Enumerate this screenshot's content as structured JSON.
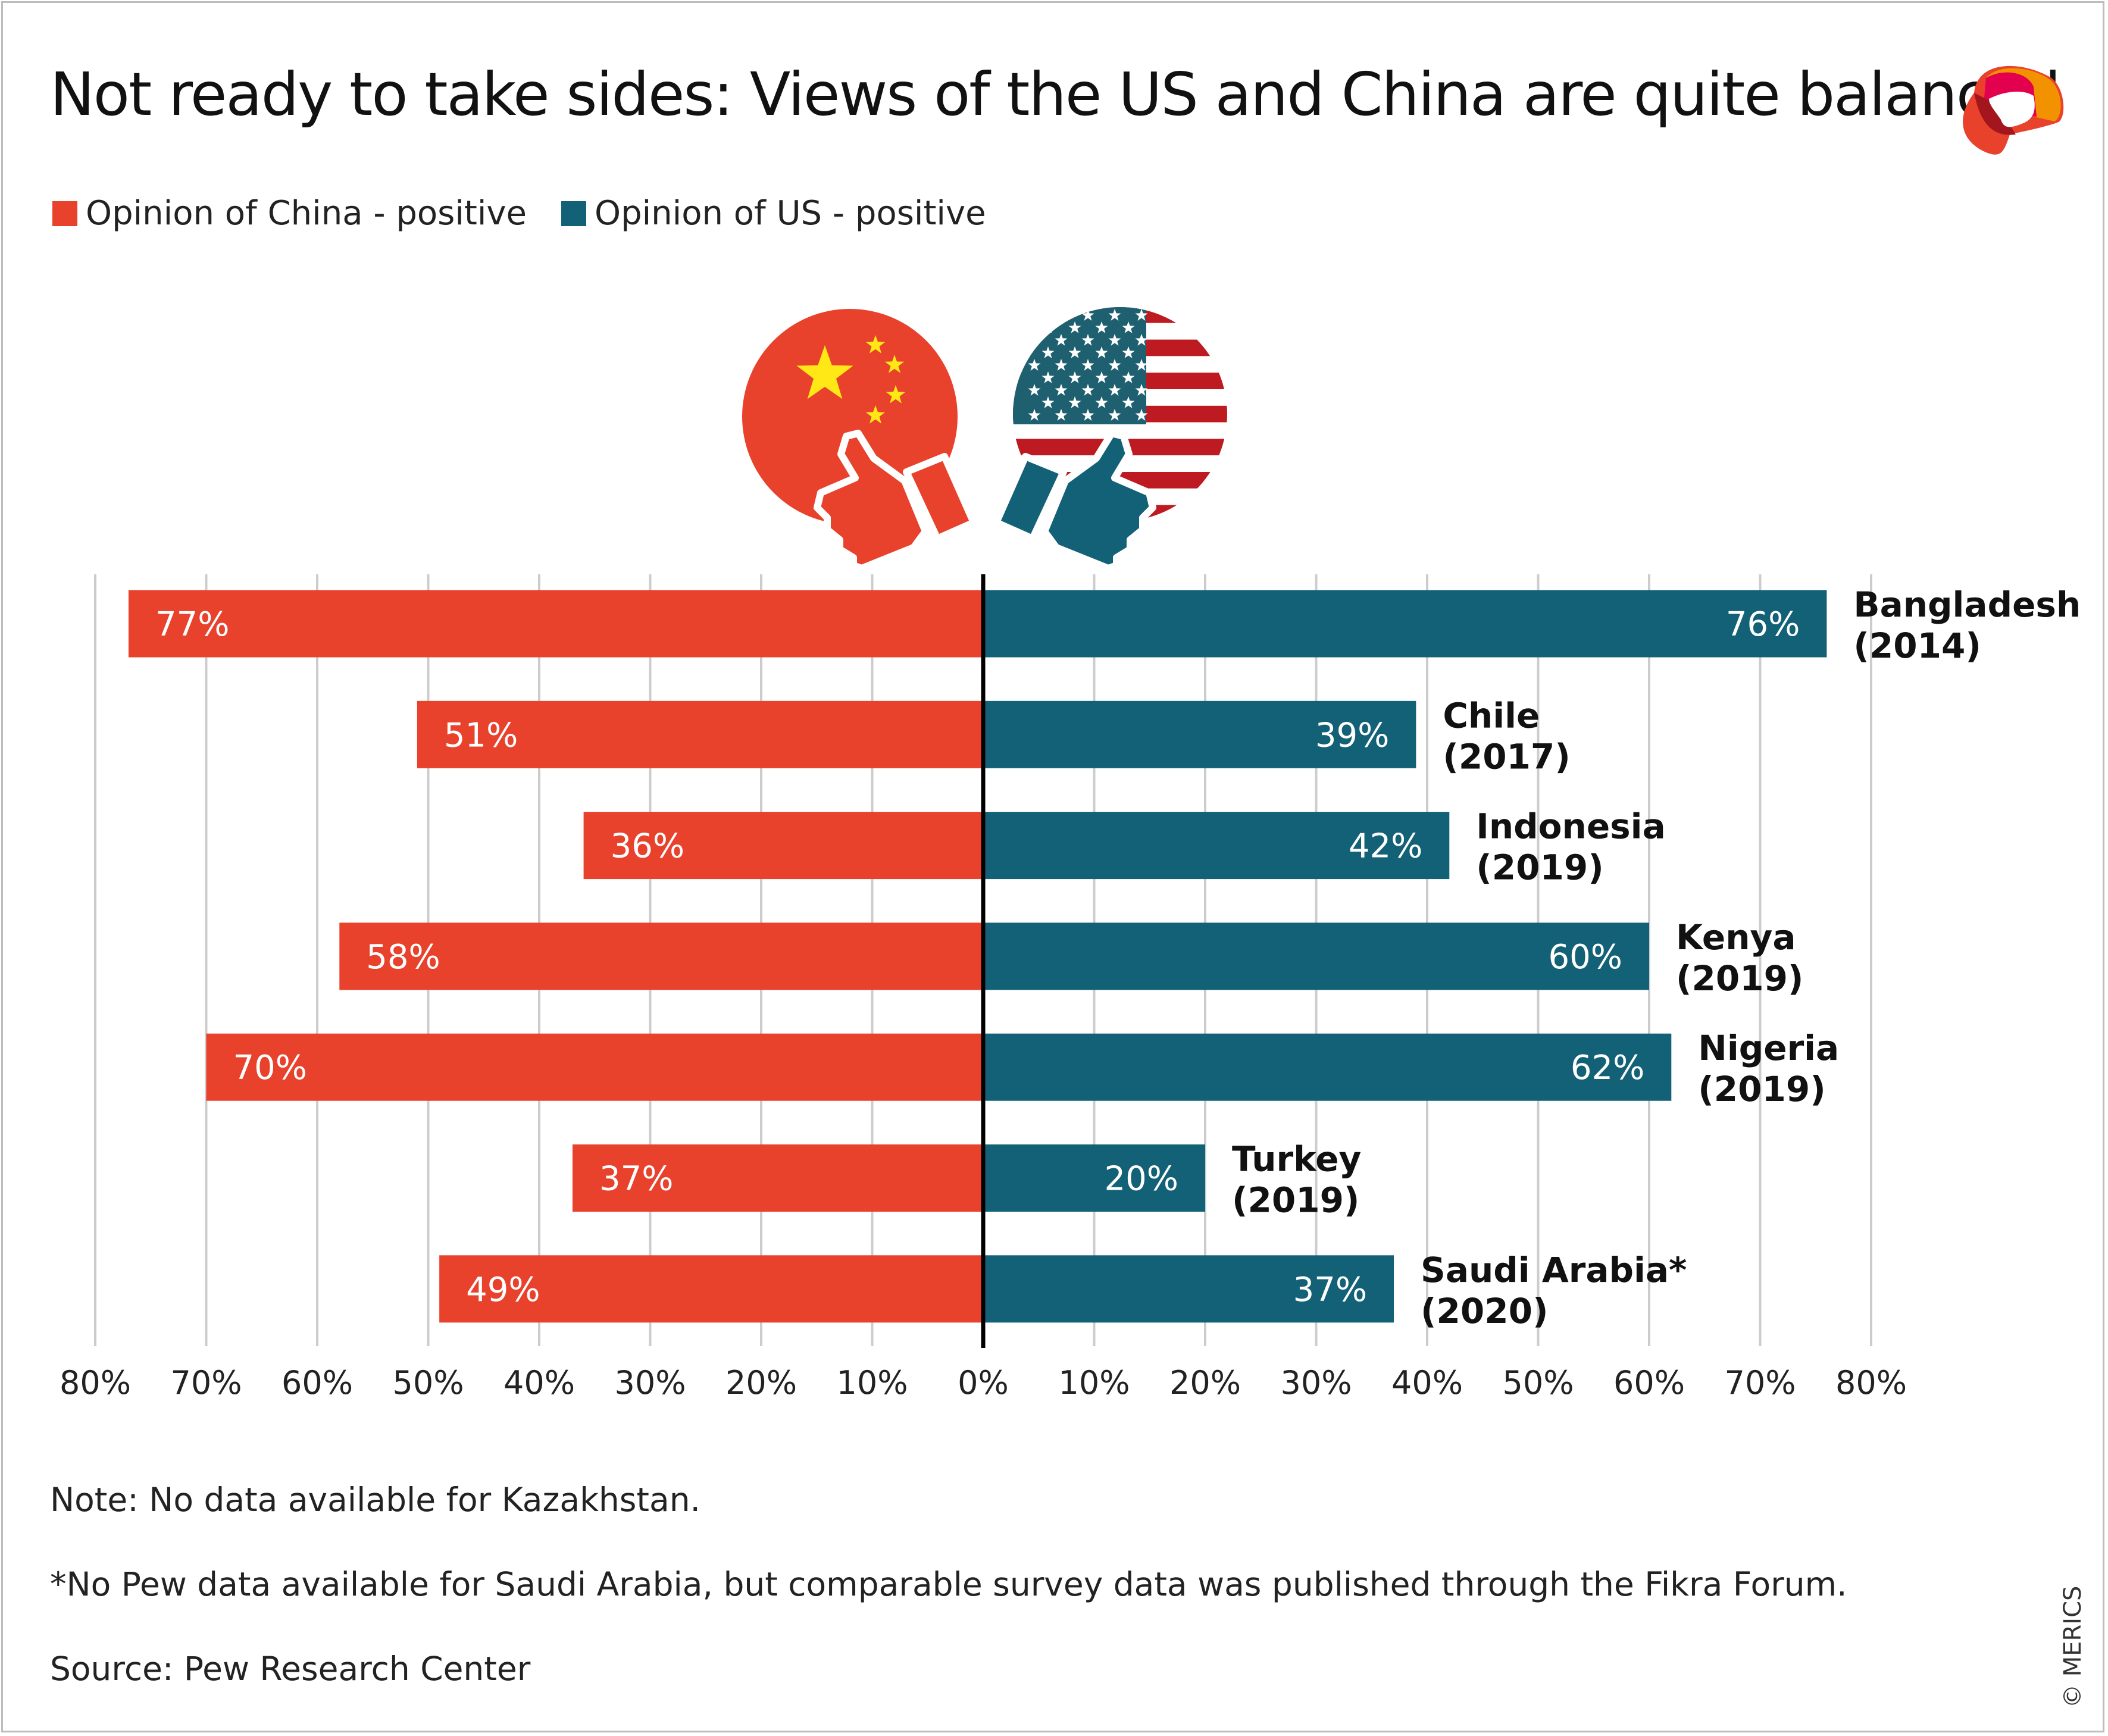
{
  "title": "Not ready to take sides: Views of the US and China are quite balanced",
  "colors": {
    "china": "#E8412C",
    "us": "#136177",
    "us_flag_red": "#BE1A22",
    "china_star": "#FFE815",
    "grid": "#cccccc"
  },
  "icons": [
    "china-flag-thumbs-up-icon",
    "us-flag-thumbs-up-icon",
    "merics-logo"
  ],
  "notes": [
    "Note: No data available for Kazakhstan.",
    "*No Pew data available for Saudi Arabia, but comparable survey data was published through the Fikra Forum.",
    "Source: Pew Research Center"
  ],
  "credit": "© MERICS",
  "chart_data": {
    "type": "bar",
    "orientation": "horizontal-diverging",
    "title": "Not ready to take sides: Views of the US and China are quite balanced",
    "legend": [
      "Opinion of China - positive",
      "Opinion of US - positive"
    ],
    "legend_position": "top-left",
    "categories": [
      {
        "name": "Bangladesh",
        "year": "(2014)"
      },
      {
        "name": "Chile",
        "year": "(2017)"
      },
      {
        "name": "Indonesia",
        "year": "(2019)"
      },
      {
        "name": "Kenya",
        "year": "(2019)"
      },
      {
        "name": "Nigeria",
        "year": "(2019)"
      },
      {
        "name": "Turkey",
        "year": "(2019)"
      },
      {
        "name": "Saudi Arabia*",
        "year": "(2020)"
      }
    ],
    "series": [
      {
        "name": "Opinion of China - positive",
        "side": "left",
        "values": [
          77,
          51,
          36,
          58,
          70,
          37,
          49
        ]
      },
      {
        "name": "Opinion of US - positive",
        "side": "right",
        "values": [
          76,
          39,
          42,
          60,
          62,
          20,
          37
        ]
      }
    ],
    "xlim": [
      -80,
      80
    ],
    "xticks": [
      "80%",
      "70%",
      "60%",
      "50%",
      "40%",
      "30%",
      "20%",
      "10%",
      "0%",
      "10%",
      "20%",
      "30%",
      "40%",
      "50%",
      "60%",
      "70%",
      "80%"
    ],
    "grid": true,
    "value_suffix": "%"
  }
}
